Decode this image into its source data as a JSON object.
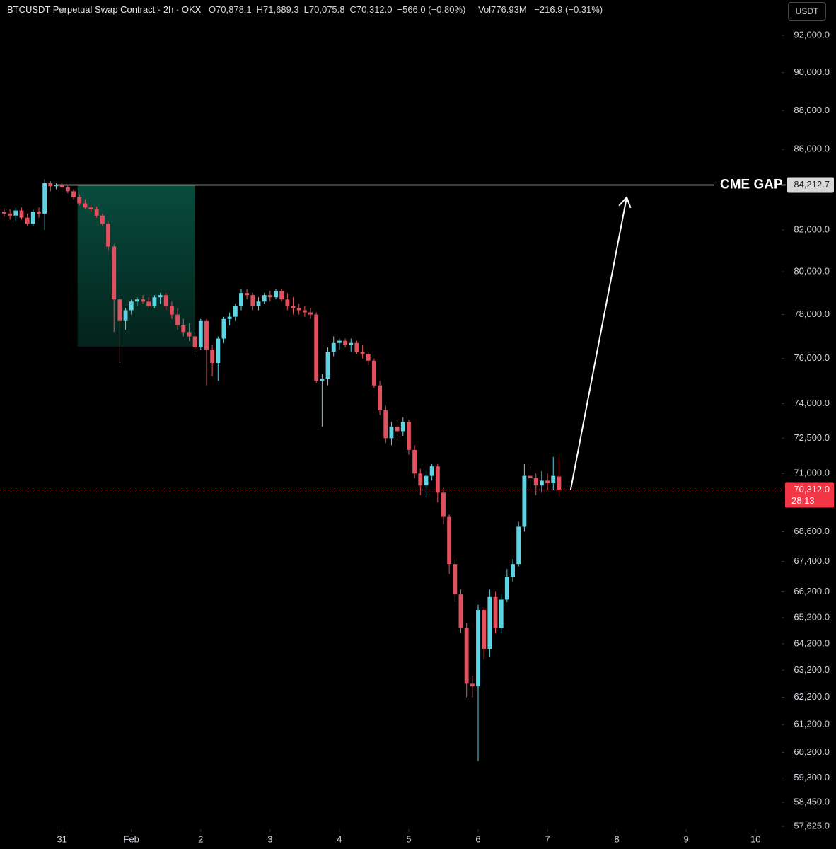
{
  "chart_data": {
    "type": "candlestick",
    "header": {
      "title": "BTCUSDT Perpetual Swap Contract · 2h · OKX",
      "ohlc": [
        "O70,878.1",
        "H71,689.3",
        "L70,075.8",
        "C70,312.0",
        "−566.0 (−0.80%)"
      ],
      "volume": "Vol776.93M",
      "volume_change": "−216.9 (−0.31%)"
    },
    "currency": "USDT",
    "log_y": true,
    "up_color": "#5fd3e3",
    "down_color": "#e2505f",
    "x": [
      0,
      1,
      2,
      3,
      4,
      5,
      6,
      7,
      8,
      9,
      10,
      11,
      12,
      13,
      14,
      15,
      16,
      17,
      18,
      19,
      20,
      21,
      22,
      23,
      24,
      25,
      26,
      27,
      28,
      29,
      30,
      31,
      32,
      33,
      34,
      35,
      36,
      37,
      38,
      39,
      40,
      41,
      42,
      43,
      44,
      45,
      46,
      47,
      48,
      49,
      50,
      51,
      52,
      53,
      54,
      55,
      56,
      57,
      58,
      59,
      60,
      61,
      62,
      63,
      64,
      65,
      66,
      67,
      68,
      69,
      70,
      71,
      72,
      73,
      74,
      75,
      76,
      77,
      78,
      79,
      80,
      81,
      82,
      83,
      84,
      85,
      86,
      87,
      88,
      89,
      90,
      91,
      92,
      93,
      94,
      95,
      96
    ],
    "open": [
      82900,
      82800,
      82700,
      82950,
      82600,
      82300,
      82900,
      82800,
      84300,
      84150,
      84200,
      84100,
      83900,
      83600,
      83300,
      83100,
      83000,
      82700,
      82300,
      81200,
      78700,
      77700,
      78200,
      78600,
      78700,
      78600,
      78400,
      78800,
      78900,
      78400,
      78000,
      77500,
      77200,
      77000,
      76500,
      77700,
      76400,
      75800,
      76900,
      77800,
      77900,
      78400,
      79000,
      78900,
      78400,
      78600,
      78900,
      78800,
      79100,
      78700,
      78400,
      78300,
      78200,
      78100,
      78000,
      75000,
      75100,
      76300,
      76700,
      76800,
      76600,
      76700,
      76300,
      76200,
      75900,
      74800,
      73700,
      72500,
      73000,
      72800,
      73200,
      72000,
      71000,
      70500,
      70900,
      71300,
      70200,
      69200,
      67300,
      66100,
      64800,
      62700,
      62600,
      65500,
      64000,
      66000,
      64800,
      65900,
      66800,
      67300,
      68800,
      70900,
      70800,
      70500,
      70700,
      70600,
      70878.1
    ],
    "high": [
      83050,
      83000,
      83100,
      83100,
      82800,
      83000,
      83100,
      84500,
      84400,
      84300,
      84300,
      84250,
      84000,
      83750,
      83500,
      83250,
      83150,
      82800,
      82400,
      81300,
      78900,
      78300,
      78700,
      78800,
      78900,
      78800,
      78900,
      79000,
      79000,
      78600,
      78300,
      77800,
      77600,
      77200,
      77800,
      77800,
      76600,
      77000,
      77900,
      78100,
      78500,
      79200,
      79200,
      79000,
      78800,
      79000,
      79100,
      79200,
      79200,
      79000,
      78800,
      78500,
      78400,
      78300,
      78100,
      75300,
      76500,
      77000,
      76900,
      76900,
      76900,
      76800,
      76600,
      76300,
      76000,
      75000,
      73900,
      73200,
      73300,
      73400,
      73300,
      72200,
      71200,
      71100,
      71400,
      71400,
      70400,
      69300,
      67500,
      66300,
      65000,
      63000,
      65700,
      65600,
      66300,
      66200,
      66100,
      67100,
      67500,
      69000,
      71400,
      71300,
      71000,
      71100,
      71000,
      71700,
      71689.3
    ],
    "low": [
      82650,
      82500,
      82400,
      82500,
      82200,
      82200,
      82600,
      82000,
      83900,
      84000,
      84000,
      83800,
      83500,
      83200,
      83000,
      82900,
      82600,
      82200,
      81000,
      77200,
      75800,
      77300,
      78000,
      78400,
      78500,
      78300,
      78300,
      78500,
      78200,
      77800,
      77300,
      77000,
      76800,
      76300,
      76400,
      74800,
      75200,
      75000,
      76700,
      77500,
      77700,
      78200,
      78700,
      78200,
      78200,
      78500,
      78600,
      78700,
      78600,
      78200,
      78000,
      78000,
      77900,
      77800,
      74900,
      73000,
      74800,
      76100,
      76400,
      76500,
      76300,
      76200,
      76000,
      75700,
      74700,
      73500,
      72300,
      72200,
      72400,
      72600,
      71800,
      70800,
      70100,
      70000,
      70700,
      69800,
      68900,
      66900,
      65800,
      64600,
      62200,
      62200,
      59900,
      63600,
      63700,
      64600,
      64600,
      65800,
      66600,
      67200,
      68600,
      70300,
      70100,
      70200,
      70300,
      70300,
      70075.8
    ],
    "close": [
      82800,
      82700,
      82950,
      82600,
      82300,
      82900,
      82800,
      84300,
      84150,
      84200,
      84100,
      83900,
      83600,
      83300,
      83100,
      83000,
      82700,
      82300,
      81200,
      78700,
      77700,
      78200,
      78600,
      78700,
      78600,
      78400,
      78800,
      78900,
      78400,
      78000,
      77500,
      77200,
      77000,
      76500,
      77700,
      76400,
      75800,
      76900,
      77800,
      77900,
      78400,
      79000,
      78900,
      78400,
      78600,
      78900,
      78800,
      79100,
      78700,
      78400,
      78300,
      78200,
      78100,
      78000,
      75000,
      75100,
      76300,
      76700,
      76800,
      76600,
      76700,
      76300,
      76200,
      75900,
      74800,
      73700,
      72500,
      73000,
      72800,
      73200,
      72000,
      71000,
      70500,
      70900,
      71300,
      70200,
      69200,
      67300,
      66100,
      64800,
      62700,
      62600,
      65500,
      64000,
      66000,
      64800,
      65900,
      66800,
      67300,
      68800,
      70900,
      70800,
      70500,
      70700,
      70600,
      70900,
      70312.0
    ],
    "xlim": [
      -0.73,
      134.5
    ],
    "xticks": [
      {
        "value": 10,
        "label": "31"
      },
      {
        "value": 22,
        "label": "Feb"
      },
      {
        "value": 34,
        "label": "2"
      },
      {
        "value": 46,
        "label": "3"
      },
      {
        "value": 58,
        "label": "4"
      },
      {
        "value": 70,
        "label": "5"
      },
      {
        "value": 82,
        "label": "6"
      },
      {
        "value": 94,
        "label": "7"
      },
      {
        "value": 106,
        "label": "8"
      },
      {
        "value": 118,
        "label": "9"
      },
      {
        "value": 130,
        "label": "10"
      }
    ],
    "ylim": [
      57530,
      93950
    ],
    "yticks": [
      {
        "value": 92000,
        "label": "92,000.0"
      },
      {
        "value": 90000,
        "label": "90,000.0"
      },
      {
        "value": 88000,
        "label": "88,000.0"
      },
      {
        "value": 86000,
        "label": "86,000.0"
      },
      {
        "value": 82000,
        "label": "82,000.0"
      },
      {
        "value": 80000,
        "label": "80,000.0"
      },
      {
        "value": 78000,
        "label": "78,000.0"
      },
      {
        "value": 76000,
        "label": "76,000.0"
      },
      {
        "value": 74000,
        "label": "74,000.0"
      },
      {
        "value": 72500,
        "label": "72,500.0"
      },
      {
        "value": 71000,
        "label": "71,000.0"
      },
      {
        "value": 68600,
        "label": "68,600.0"
      },
      {
        "value": 67400,
        "label": "67,400.0"
      },
      {
        "value": 66200,
        "label": "66,200.0"
      },
      {
        "value": 65200,
        "label": "65,200.0"
      },
      {
        "value": 64200,
        "label": "64,200.0"
      },
      {
        "value": 63200,
        "label": "63,200.0"
      },
      {
        "value": 62200,
        "label": "62,200.0"
      },
      {
        "value": 61200,
        "label": "61,200.0"
      },
      {
        "value": 60200,
        "label": "60,200.0"
      },
      {
        "value": 59300,
        "label": "59,300.0"
      },
      {
        "value": 58450,
        "label": "58,450.0"
      },
      {
        "value": 57625,
        "label": "57,625.0"
      }
    ],
    "cme_line": {
      "value": 84212.7,
      "label": "84,212.7",
      "annotation": "CME GAP",
      "start": 9
    },
    "price_line": {
      "value": 70312.0,
      "label": "70,312.0",
      "timer": "28:13",
      "color": "#f23645"
    },
    "zone": {
      "x": [
        12.7,
        33.0
      ],
      "y": [
        76530,
        84212.7
      ],
      "color": "#0e8a6e"
    },
    "arrow": {
      "x": [
        98,
        107.7
      ],
      "y": [
        70312.0,
        83600
      ]
    }
  }
}
